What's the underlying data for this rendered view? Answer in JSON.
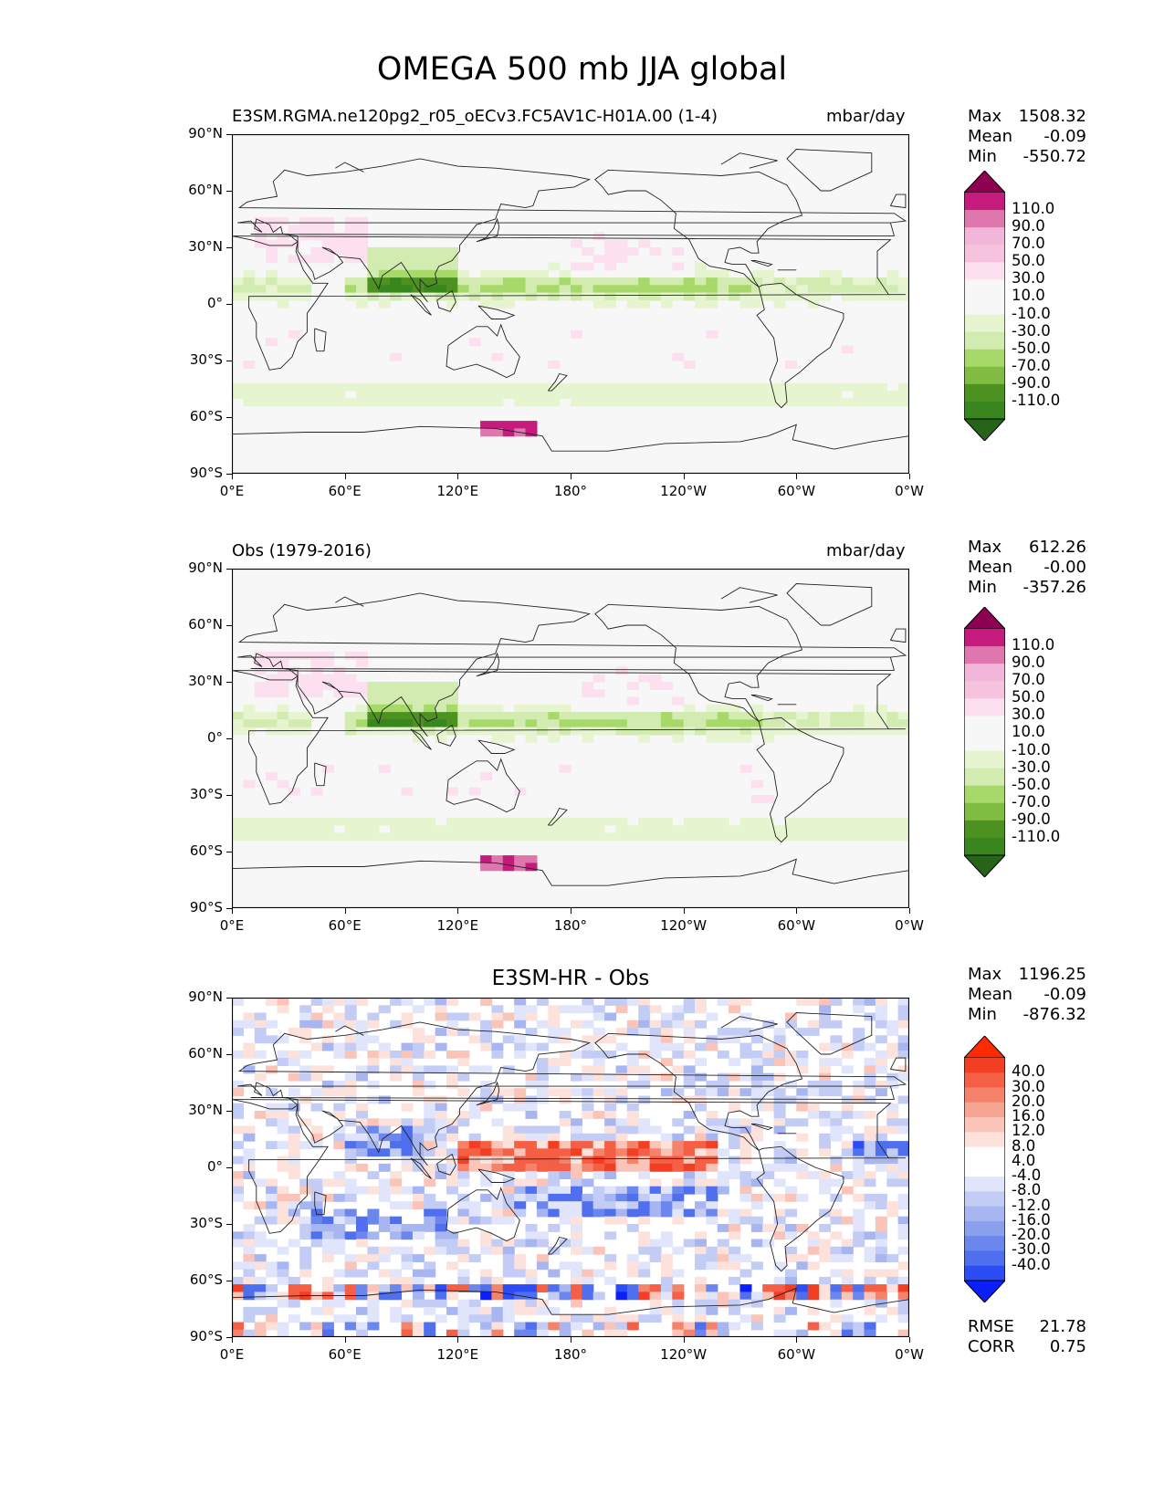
{
  "figure_title": "OMEGA 500 mb JJA global",
  "colors": {
    "piyg": [
      "#276419",
      "#39861f",
      "#4d9221",
      "#7fbc41",
      "#a6d96a",
      "#d2ebb0",
      "#e6f5d0",
      "#f7f7f7",
      "#f7f7f7",
      "#fde0ef",
      "#f6c2dd",
      "#f1b6da",
      "#de77ae",
      "#c51b7d",
      "#8e0152"
    ],
    "bwr": [
      "#0c1ffa",
      "#2c4cf5",
      "#4f6fee",
      "#6b86ec",
      "#8ba0ed",
      "#a7b6f0",
      "#c3ccf5",
      "#e0e5fb",
      "#ffffff",
      "#ffffff",
      "#fde1db",
      "#fac4b8",
      "#f7a593",
      "#f5836c",
      "#f45f45",
      "#f23e22",
      "#ff2a00"
    ],
    "coast": "#222222"
  },
  "panels": [
    {
      "title_left": "E3SM.RGMA.ne120pg2_r05_oECv3.FC5AV1C-H01A.00 (1-4)",
      "title_right": "mbar/day",
      "stats": [
        {
          "label": "Max",
          "value": "1508.32"
        },
        {
          "label": "Mean",
          "value": "-0.09"
        },
        {
          "label": "Min",
          "value": "-550.72"
        }
      ],
      "colorbar_labels": [
        "110.0",
        "90.0",
        "70.0",
        "50.0",
        "30.0",
        "10.0",
        "-10.0",
        "-30.0",
        "-50.0",
        "-70.0",
        "-90.0",
        "-110.0"
      ]
    },
    {
      "title_left": "Obs (1979-2016)",
      "title_right": "mbar/day",
      "stats": [
        {
          "label": "Max",
          "value": "612.26"
        },
        {
          "label": "Mean",
          "value": "-0.00"
        },
        {
          "label": "Min",
          "value": "-357.26"
        }
      ],
      "colorbar_labels": [
        "110.0",
        "90.0",
        "70.0",
        "50.0",
        "30.0",
        "10.0",
        "-10.0",
        "-30.0",
        "-50.0",
        "-70.0",
        "-90.0",
        "-110.0"
      ]
    },
    {
      "title_center": "E3SM-HR - Obs",
      "stats": [
        {
          "label": "Max",
          "value": "1196.25"
        },
        {
          "label": "Mean",
          "value": "-0.09"
        },
        {
          "label": "Min",
          "value": "-876.32"
        }
      ],
      "colorbar_labels": [
        "40.0",
        "30.0",
        "20.0",
        "16.0",
        "12.0",
        "8.0",
        "4.0",
        "-4.0",
        "-8.0",
        "-12.0",
        "-16.0",
        "-20.0",
        "-30.0",
        "-40.0"
      ],
      "metrics": [
        {
          "label": "RMSE",
          "value": "21.78"
        },
        {
          "label": "CORR",
          "value": "0.75"
        }
      ]
    }
  ],
  "chart_data": {
    "type": "heatmap",
    "title": "OMEGA 500 mb JJA global",
    "variable": "OMEGA 500 mb",
    "units": "mbar/day",
    "projection": "PlateCarree",
    "lon_ticks": [
      "0°E",
      "60°E",
      "120°E",
      "180°",
      "120°W",
      "60°W",
      "0°W"
    ],
    "lat_ticks": [
      "90°N",
      "60°N",
      "30°N",
      "0°",
      "30°S",
      "60°S",
      "90°S"
    ],
    "xlim": [
      0,
      360
    ],
    "ylim": [
      -90,
      90
    ],
    "panels": [
      {
        "name": "E3SM.RGMA.ne120pg2_r05_oECv3.FC5AV1C-H01A.00 (1-4)",
        "max": 1508.32,
        "mean": -0.09,
        "min": -550.72,
        "levels": [
          -110,
          -90,
          -70,
          -50,
          -30,
          -10,
          10,
          30,
          50,
          70,
          90,
          110
        ]
      },
      {
        "name": "Obs (1979-2016)",
        "max": 612.26,
        "mean": -0.0,
        "min": -357.26,
        "levels": [
          -110,
          -90,
          -70,
          -50,
          -30,
          -10,
          10,
          30,
          50,
          70,
          90,
          110
        ]
      },
      {
        "name": "E3SM-HR - Obs",
        "max": 1196.25,
        "mean": -0.09,
        "min": -876.32,
        "rmse": 21.78,
        "corr": 0.75,
        "levels": [
          -40,
          -30,
          -20,
          -16,
          -12,
          -8,
          -4,
          4,
          8,
          12,
          16,
          20,
          30,
          40
        ]
      }
    ]
  }
}
